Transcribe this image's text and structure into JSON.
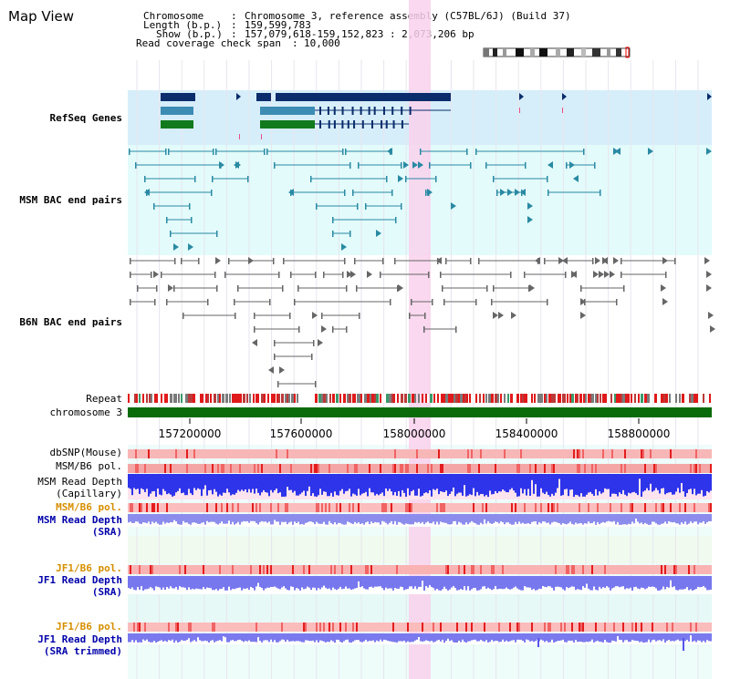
{
  "window": {
    "title": "Map View"
  },
  "info": {
    "chromosome_key": "Chromosome",
    "chromosome_value": "Chromosome 3, reference assembly (C57BL/6J) (Build 37)",
    "length_key": "Length (b.p.)",
    "length_value": "159,599,783",
    "show_key": "Show (b.p.)",
    "show_value": "157,079,618-159,152,823 : 2,073,206 bp",
    "span_key": "Read coverage check span",
    "span_value": "10,000"
  },
  "tracks": {
    "refseq": "RefSeq Genes",
    "msm_bac": "MSM BAC end pairs",
    "b6n_bac": "B6N BAC end pairs",
    "repeat": "Repeat",
    "chromosome": "chromosome 3",
    "dbsnp": "dbSNP(Mouse)",
    "msm_b6_pol_1": "MSM/B6 pol.",
    "msm_depth_cap_1": "MSM Read Depth",
    "msm_depth_cap_2": "(Capillary)",
    "msm_b6_pol_2": "MSM/B6 pol.",
    "msm_depth_sra_1": "MSM Read Depth",
    "msm_depth_sra_2": "(SRA)",
    "jf1_pol_1": "JF1/B6 pol.",
    "jf1_depth_1": "JF1 Read Depth",
    "jf1_depth_2": "(SRA)",
    "jf1_pol_2": "JF1/B6 pol.",
    "jf1_trim_1": "JF1 Read Depth",
    "jf1_trim_2": "(SRA trimmed)"
  },
  "axis": {
    "ticks": [
      "157200000",
      "157600000",
      "158000000",
      "158400000",
      "158800000"
    ]
  },
  "colors": {
    "refseq_bg": "#d6eefa",
    "msm_bg": "#e3fbfb",
    "highlight": "#f9d1ec",
    "gene_dark": "#0b2d6b",
    "gene_mid": "#3d8cb4",
    "gene_green": "#117a1d",
    "msm_feature": "#2a8aa3",
    "b6n_feature": "#666666",
    "chromosome_bar": "#0a6b0a",
    "label_blue": "#0000aa",
    "label_teal": "#1e6e82",
    "label_orange": "#d78f00",
    "label_gray": "#555555"
  }
}
